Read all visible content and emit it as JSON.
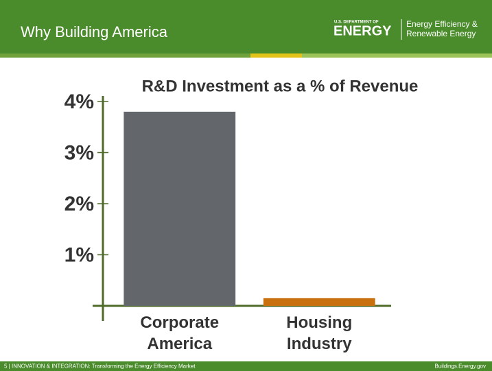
{
  "header": {
    "title": "Why Building America"
  },
  "logo": {
    "department": "U.S. DEPARTMENT OF",
    "energy": "ENERGY",
    "office_line1": "Energy Efficiency &",
    "office_line2": "Renewable Energy"
  },
  "footer": {
    "left": "5 | INNOVATION & INTEGRATION: Transforming the Energy Efficiency Market",
    "right": "Buildings.Energy.gov"
  },
  "chart_data": {
    "type": "bar",
    "title": "R&D Investment as a % of Revenue",
    "categories": [
      "Corporate America",
      "Housing Industry"
    ],
    "series": [
      {
        "name": null,
        "colors": [
          "#63666a",
          "#c8700e"
        ],
        "values": [
          3.8,
          0.15
        ]
      }
    ],
    "ylim": [
      0,
      4
    ],
    "yticks": [
      {
        "value": 1,
        "label": "1%"
      },
      {
        "value": 2,
        "label": "2%"
      },
      {
        "value": 3,
        "label": "3%"
      },
      {
        "value": 4,
        "label": "4%"
      }
    ],
    "grid": false
  }
}
